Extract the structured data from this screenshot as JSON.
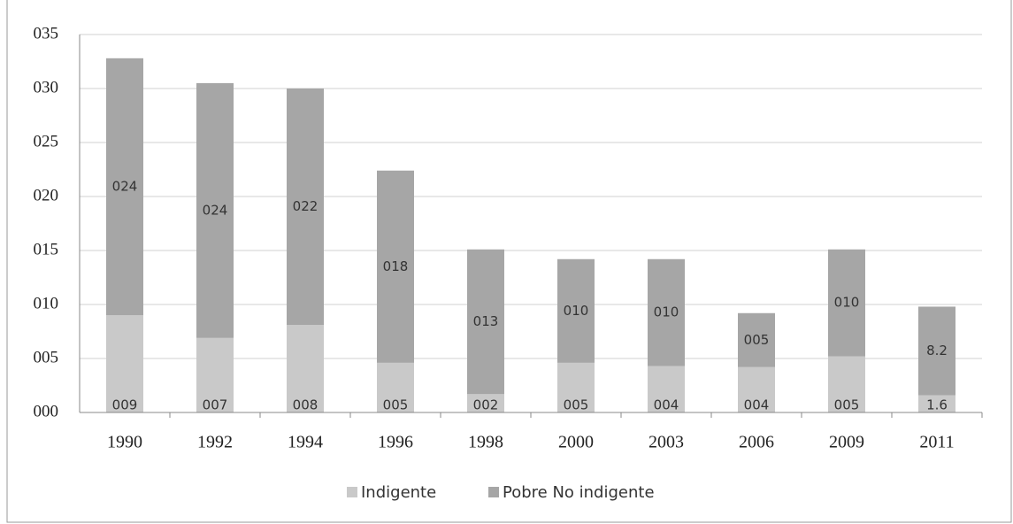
{
  "chart_data": {
    "type": "stacked_bar",
    "categories": [
      "1990",
      "1992",
      "1994",
      "1996",
      "1998",
      "2000",
      "2003",
      "2006",
      "2009",
      "2011"
    ],
    "series": [
      {
        "name": "Indigente",
        "color": "#c9c9c9",
        "values": [
          9.0,
          6.9,
          8.1,
          4.6,
          1.7,
          4.6,
          4.3,
          4.2,
          5.2,
          1.6
        ],
        "value_labels": [
          "009",
          "007",
          "008",
          "005",
          "002",
          "005",
          "004",
          "004",
          "005",
          "1.6"
        ]
      },
      {
        "name": "Pobre No indigente",
        "color": "#a6a6a6",
        "values": [
          23.8,
          23.6,
          21.9,
          17.8,
          13.4,
          9.6,
          9.9,
          5.0,
          9.9,
          8.2
        ],
        "value_labels": [
          "024",
          "024",
          "022",
          "018",
          "013",
          "010",
          "010",
          "005",
          "010",
          "8.2"
        ]
      }
    ],
    "ylim": [
      0,
      35
    ],
    "yticks": [
      {
        "value": 0,
        "label": "000"
      },
      {
        "value": 5,
        "label": "005"
      },
      {
        "value": 10,
        "label": "010"
      },
      {
        "value": 15,
        "label": "015"
      },
      {
        "value": 20,
        "label": "020"
      },
      {
        "value": 25,
        "label": "025"
      },
      {
        "value": 30,
        "label": "030"
      },
      {
        "value": 35,
        "label": "035"
      }
    ],
    "grid": true,
    "legend": "bottom"
  }
}
